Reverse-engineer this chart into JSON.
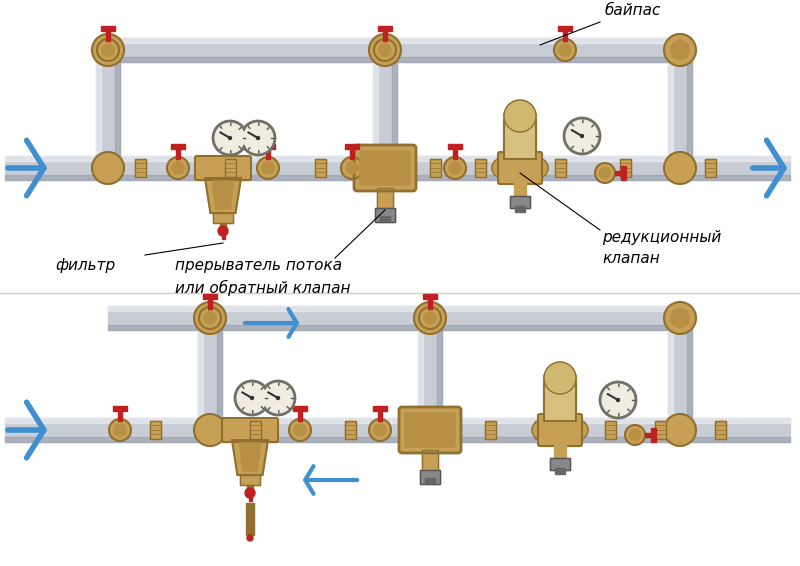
{
  "bg_color": "#ffffff",
  "pipe_color": "#c8ccd4",
  "pipe_edge_top": "#e8eaf0",
  "pipe_edge_bot": "#9098a8",
  "brass_color": "#c8a055",
  "brass_mid": "#b89045",
  "brass_dark": "#907030",
  "brass_light": "#dfc080",
  "red_color": "#c02020",
  "arrow_color": "#4090d0",
  "text_color": "#000000",
  "gray_color": "#808080",
  "label_bypass": "байпас",
  "label_filter": "фильтр",
  "label_breaker": "прерыватель потока\nили обратный клапан",
  "label_reducer": "редукционный\nклапан",
  "fig_width": 8.0,
  "fig_height": 5.66,
  "dpi": 100
}
